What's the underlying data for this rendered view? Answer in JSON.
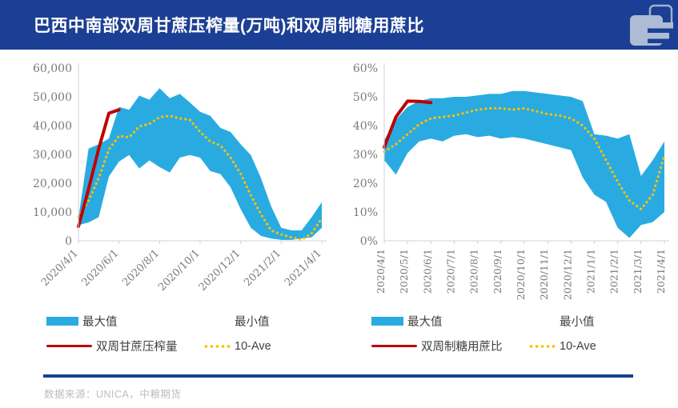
{
  "header": {
    "title": "巴西中南部双周甘蔗压榨量(万吨)和双周制糖用蔗比"
  },
  "colors": {
    "header_bg": "#1B3F94",
    "band_blue": "#29ABE2",
    "actual_red": "#C00000",
    "average_yellow": "#FFC000",
    "axis_text": "#7A7A7A",
    "axis_line": "#C9D3E2",
    "legend_text": "#404040",
    "footer_rule": "#16418C",
    "footer_text": "#BDBDBD",
    "logo_fill": "#AEBBD4"
  },
  "footer": {
    "source": "数据来源：UNICA，中粮期货"
  },
  "chart_data": [
    {
      "type": "area",
      "name": "双周甘蔗压榨量(万吨)",
      "xlabel": "",
      "ylabel": "",
      "ylim": [
        0,
        60000
      ],
      "grid": false,
      "legend_position": "bottom",
      "ytick_values": [
        0,
        10000,
        20000,
        30000,
        40000,
        50000,
        60000
      ],
      "ytick_labels": [
        "0",
        "10,000",
        "20,000",
        "30,000",
        "40,000",
        "50,000",
        "60,000"
      ],
      "x_tick_labels": [
        "2020/4/1",
        "2020/6/1",
        "2020/8/1",
        "2020/10/1",
        "2020/12/1",
        "2021/2/1",
        "2021/4/1"
      ],
      "x": [
        "2020/4/1",
        "2020/4/15",
        "2020/5/1",
        "2020/5/15",
        "2020/6/1",
        "2020/6/15",
        "2020/7/1",
        "2020/7/15",
        "2020/8/1",
        "2020/8/15",
        "2020/9/1",
        "2020/9/15",
        "2020/10/1",
        "2020/10/15",
        "2020/11/1",
        "2020/11/15",
        "2020/12/1",
        "2020/12/15",
        "2021/1/1",
        "2021/1/15",
        "2021/2/1",
        "2021/2/15",
        "2021/3/1",
        "2021/3/15",
        "2021/4/1"
      ],
      "series": [
        {
          "name": "最大值",
          "role": "band_max",
          "color": "#29ABE2",
          "values": [
            8000,
            32000,
            33500,
            35500,
            46500,
            45500,
            50400,
            49000,
            53000,
            49500,
            51000,
            48000,
            44800,
            43400,
            39200,
            37800,
            33500,
            29800,
            21800,
            12000,
            4500,
            3600,
            3600,
            8200,
            13400
          ]
        },
        {
          "name": "最小值",
          "role": "band_min",
          "color": "#FFFFFF",
          "values": [
            5400,
            6400,
            8200,
            22300,
            27500,
            29800,
            25100,
            27900,
            25600,
            23700,
            28900,
            29800,
            28900,
            24200,
            23200,
            18600,
            11000,
            4500,
            1700,
            800,
            300,
            300,
            800,
            1200,
            4500
          ]
        },
        {
          "name": "双周甘蔗压榨量",
          "role": "line",
          "color": "#C00000",
          "values": [
            5000,
            18000,
            32000,
            44300,
            45500,
            null,
            null,
            null,
            null,
            null,
            null,
            null,
            null,
            null,
            null,
            null,
            null,
            null,
            null,
            null,
            null,
            null,
            null,
            null,
            null
          ]
        },
        {
          "name": "10-Ave",
          "role": "dotted",
          "color": "#FFC000",
          "values": [
            8300,
            13900,
            21800,
            31700,
            36400,
            35900,
            39700,
            40600,
            42900,
            43400,
            42500,
            42000,
            37800,
            34500,
            33100,
            28900,
            23300,
            15800,
            9200,
            3600,
            2200,
            1200,
            300,
            2600,
            7800
          ]
        }
      ]
    },
    {
      "type": "area",
      "name": "双周制糖用蔗比",
      "xlabel": "",
      "ylabel": "",
      "ylim": [
        0,
        60
      ],
      "grid": false,
      "legend_position": "bottom",
      "ytick_values": [
        0,
        10,
        20,
        30,
        40,
        50,
        60
      ],
      "ytick_labels": [
        "0%",
        "10%",
        "20%",
        "30%",
        "40%",
        "50%",
        "60%"
      ],
      "x_tick_labels": [
        "2020/4/1",
        "2020/5/1",
        "2020/6/1",
        "2020/7/1",
        "2020/8/1",
        "2020/9/1",
        "2020/10/1",
        "2020/11/1",
        "2020/12/1",
        "2021/1/1",
        "2021/2/1",
        "2021/3/1",
        "2021/4/1"
      ],
      "x": [
        "2020/4/1",
        "2020/4/15",
        "2020/5/1",
        "2020/5/15",
        "2020/6/1",
        "2020/6/15",
        "2020/7/1",
        "2020/7/15",
        "2020/8/1",
        "2020/8/15",
        "2020/9/1",
        "2020/9/15",
        "2020/10/1",
        "2020/10/15",
        "2020/11/1",
        "2020/11/15",
        "2020/12/1",
        "2020/12/15",
        "2021/1/1",
        "2021/1/15",
        "2021/2/1",
        "2021/2/15",
        "2021/3/1",
        "2021/3/15",
        "2021/4/1"
      ],
      "series": [
        {
          "name": "最大值",
          "role": "band_max",
          "color": "#29ABE2",
          "values": [
            35,
            42,
            46.5,
            48.5,
            49.5,
            49.5,
            50,
            50,
            50.5,
            51,
            51,
            52,
            52,
            51.5,
            51,
            50.5,
            50,
            48.5,
            37,
            36.5,
            35.5,
            37,
            22.5,
            28,
            34.5
          ]
        },
        {
          "name": "最小值",
          "role": "band_min",
          "color": "#FFFFFF",
          "values": [
            28,
            23,
            30.5,
            34.5,
            35.5,
            34.5,
            36.5,
            37,
            36,
            36.5,
            35.5,
            36,
            35.5,
            34.5,
            33.5,
            32.5,
            31.5,
            22,
            16,
            13.5,
            4.5,
            1,
            5.5,
            6.5,
            10
          ]
        },
        {
          "name": "双周制糖用蔗比",
          "role": "line",
          "color": "#C00000",
          "values": [
            32.5,
            43,
            48.5,
            48.4,
            48,
            null,
            null,
            null,
            null,
            null,
            null,
            null,
            null,
            null,
            null,
            null,
            null,
            null,
            null,
            null,
            null,
            null,
            null,
            null,
            null
          ]
        },
        {
          "name": "10-Ave",
          "role": "dotted",
          "color": "#FFC000",
          "values": [
            31,
            33.5,
            37,
            40.5,
            42.5,
            43,
            43.5,
            44.5,
            45.5,
            46,
            46,
            45.5,
            46,
            45,
            44,
            43.5,
            42.5,
            40,
            35.5,
            28,
            20.5,
            14,
            11,
            16,
            29.5
          ]
        }
      ]
    }
  ]
}
